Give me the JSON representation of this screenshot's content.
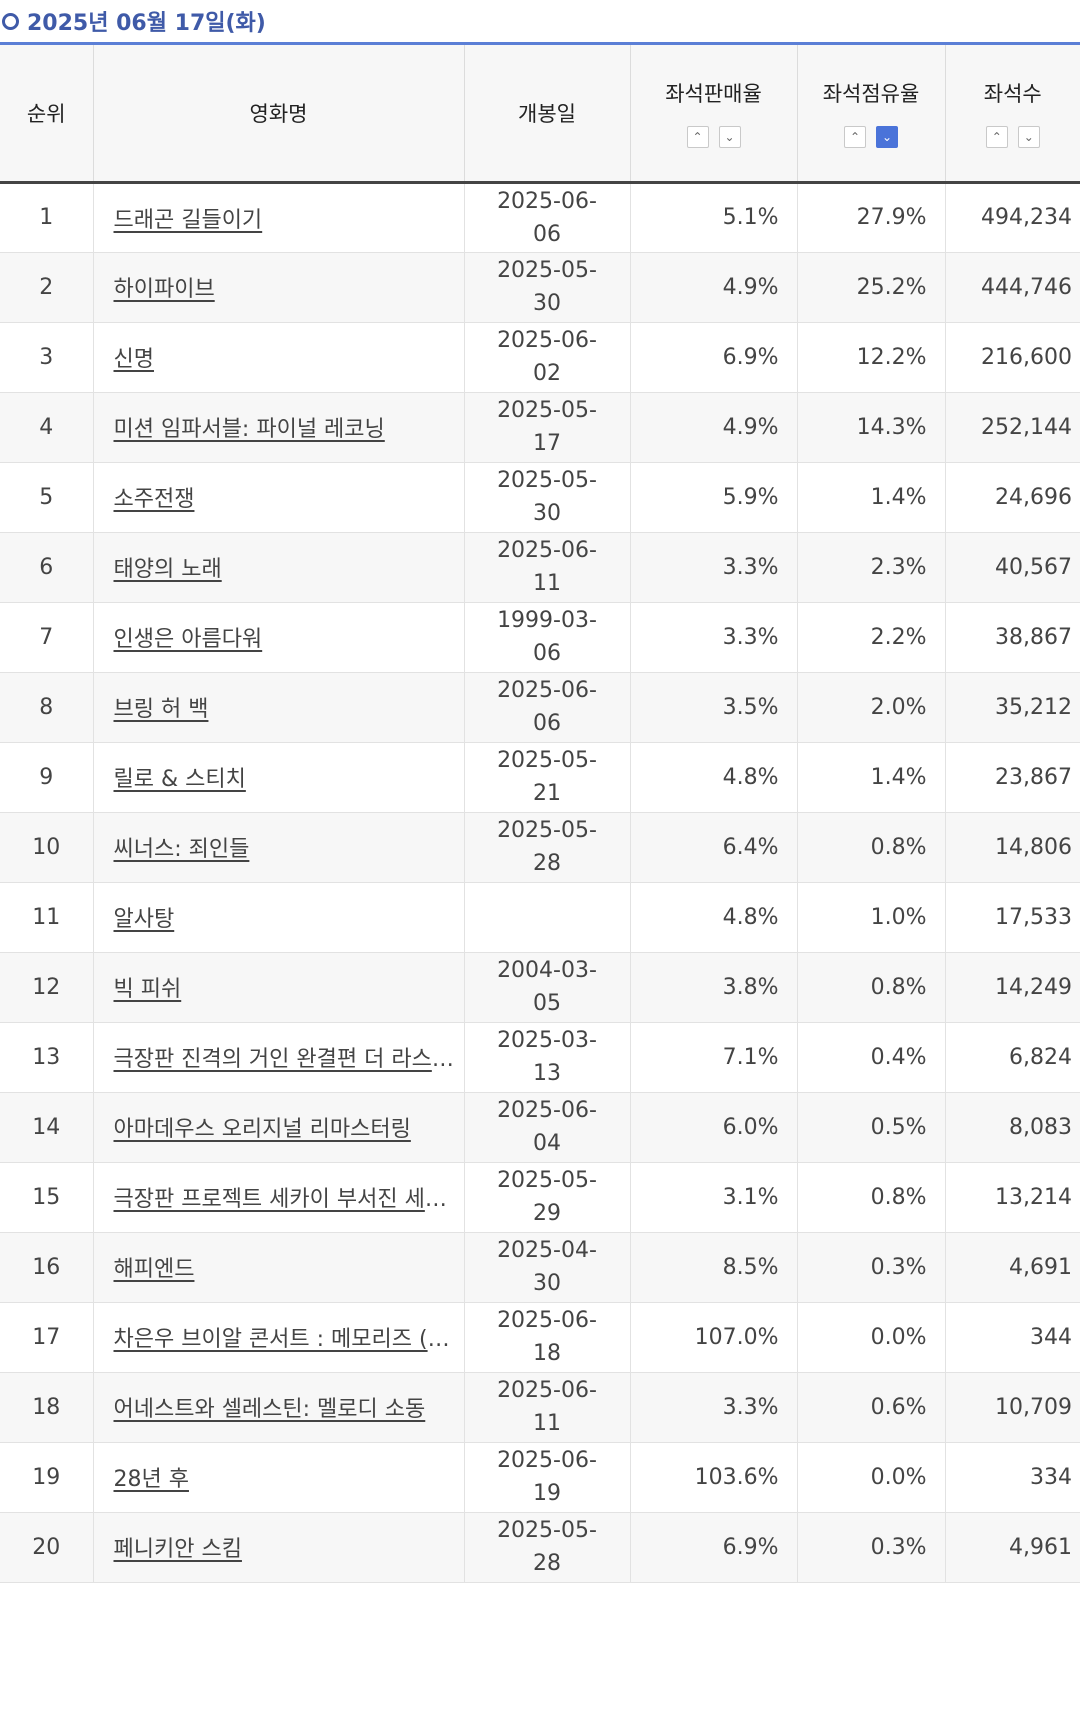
{
  "date_label": "2025년 06월 17일(화)",
  "headers": {
    "rank": "순위",
    "title": "영화명",
    "release": "개봉일",
    "sales_rate": "좌석판매율",
    "occupancy": "좌석점유율",
    "seats": "좌석수"
  },
  "sort": {
    "active_column": "occupancy",
    "active_direction": "desc",
    "up_glyph": "⌃",
    "down_glyph": "⌄"
  },
  "rows": [
    {
      "rank": "1",
      "title": "드래곤 길들이기",
      "release": "2025-06-06",
      "sales_rate": "5.1%",
      "occupancy": "27.9%",
      "seats": "494,234"
    },
    {
      "rank": "2",
      "title": "하이파이브",
      "release": "2025-05-30",
      "sales_rate": "4.9%",
      "occupancy": "25.2%",
      "seats": "444,746"
    },
    {
      "rank": "3",
      "title": "신명",
      "release": "2025-06-02",
      "sales_rate": "6.9%",
      "occupancy": "12.2%",
      "seats": "216,600"
    },
    {
      "rank": "4",
      "title": "미션 임파서블: 파이널 레코닝",
      "release": "2025-05-17",
      "sales_rate": "4.9%",
      "occupancy": "14.3%",
      "seats": "252,144"
    },
    {
      "rank": "5",
      "title": "소주전쟁",
      "release": "2025-05-30",
      "sales_rate": "5.9%",
      "occupancy": "1.4%",
      "seats": "24,696"
    },
    {
      "rank": "6",
      "title": "태양의 노래",
      "release": "2025-06-11",
      "sales_rate": "3.3%",
      "occupancy": "2.3%",
      "seats": "40,567"
    },
    {
      "rank": "7",
      "title": "인생은 아름다워",
      "release": "1999-03-06",
      "sales_rate": "3.3%",
      "occupancy": "2.2%",
      "seats": "38,867"
    },
    {
      "rank": "8",
      "title": "브링 허 백",
      "release": "2025-06-06",
      "sales_rate": "3.5%",
      "occupancy": "2.0%",
      "seats": "35,212"
    },
    {
      "rank": "9",
      "title": "릴로 & 스티치",
      "release": "2025-05-21",
      "sales_rate": "4.8%",
      "occupancy": "1.4%",
      "seats": "23,867"
    },
    {
      "rank": "10",
      "title": "씨너스: 죄인들",
      "release": "2025-05-28",
      "sales_rate": "6.4%",
      "occupancy": "0.8%",
      "seats": "14,806"
    },
    {
      "rank": "11",
      "title": "알사탕",
      "release": "",
      "sales_rate": "4.8%",
      "occupancy": "1.0%",
      "seats": "17,533"
    },
    {
      "rank": "12",
      "title": "빅 피쉬",
      "release": "2004-03-05",
      "sales_rate": "3.8%",
      "occupancy": "0.8%",
      "seats": "14,249"
    },
    {
      "rank": "13",
      "title": "극장판 진격의 거인 완결편 더 라스트 어택",
      "release": "2025-03-13",
      "sales_rate": "7.1%",
      "occupancy": "0.4%",
      "seats": "6,824"
    },
    {
      "rank": "14",
      "title": "아마데우스 오리지널 리마스터링",
      "release": "2025-06-04",
      "sales_rate": "6.0%",
      "occupancy": "0.5%",
      "seats": "8,083"
    },
    {
      "rank": "15",
      "title": "극장판 프로젝트 세카이 부서진 세카이와 전해지지 않는 미쿠의 노래",
      "release": "2025-05-29",
      "sales_rate": "3.1%",
      "occupancy": "0.8%",
      "seats": "13,214"
    },
    {
      "rank": "16",
      "title": "해피엔드",
      "release": "2025-04-30",
      "sales_rate": "8.5%",
      "occupancy": "0.3%",
      "seats": "4,691"
    },
    {
      "rank": "17",
      "title": "차은우 브이알 콘서트 : 메모리즈 (MEMORIES)",
      "release": "2025-06-18",
      "sales_rate": "107.0%",
      "occupancy": "0.0%",
      "seats": "344"
    },
    {
      "rank": "18",
      "title": "어네스트와 셀레스틴: 멜로디 소동",
      "release": "2025-06-11",
      "sales_rate": "3.3%",
      "occupancy": "0.6%",
      "seats": "10,709"
    },
    {
      "rank": "19",
      "title": "28년 후",
      "release": "2025-06-19",
      "sales_rate": "103.6%",
      "occupancy": "0.0%",
      "seats": "334"
    },
    {
      "rank": "20",
      "title": "페니키안 스킴",
      "release": "2025-05-28",
      "sales_rate": "6.9%",
      "occupancy": "0.3%",
      "seats": "4,961"
    }
  ]
}
